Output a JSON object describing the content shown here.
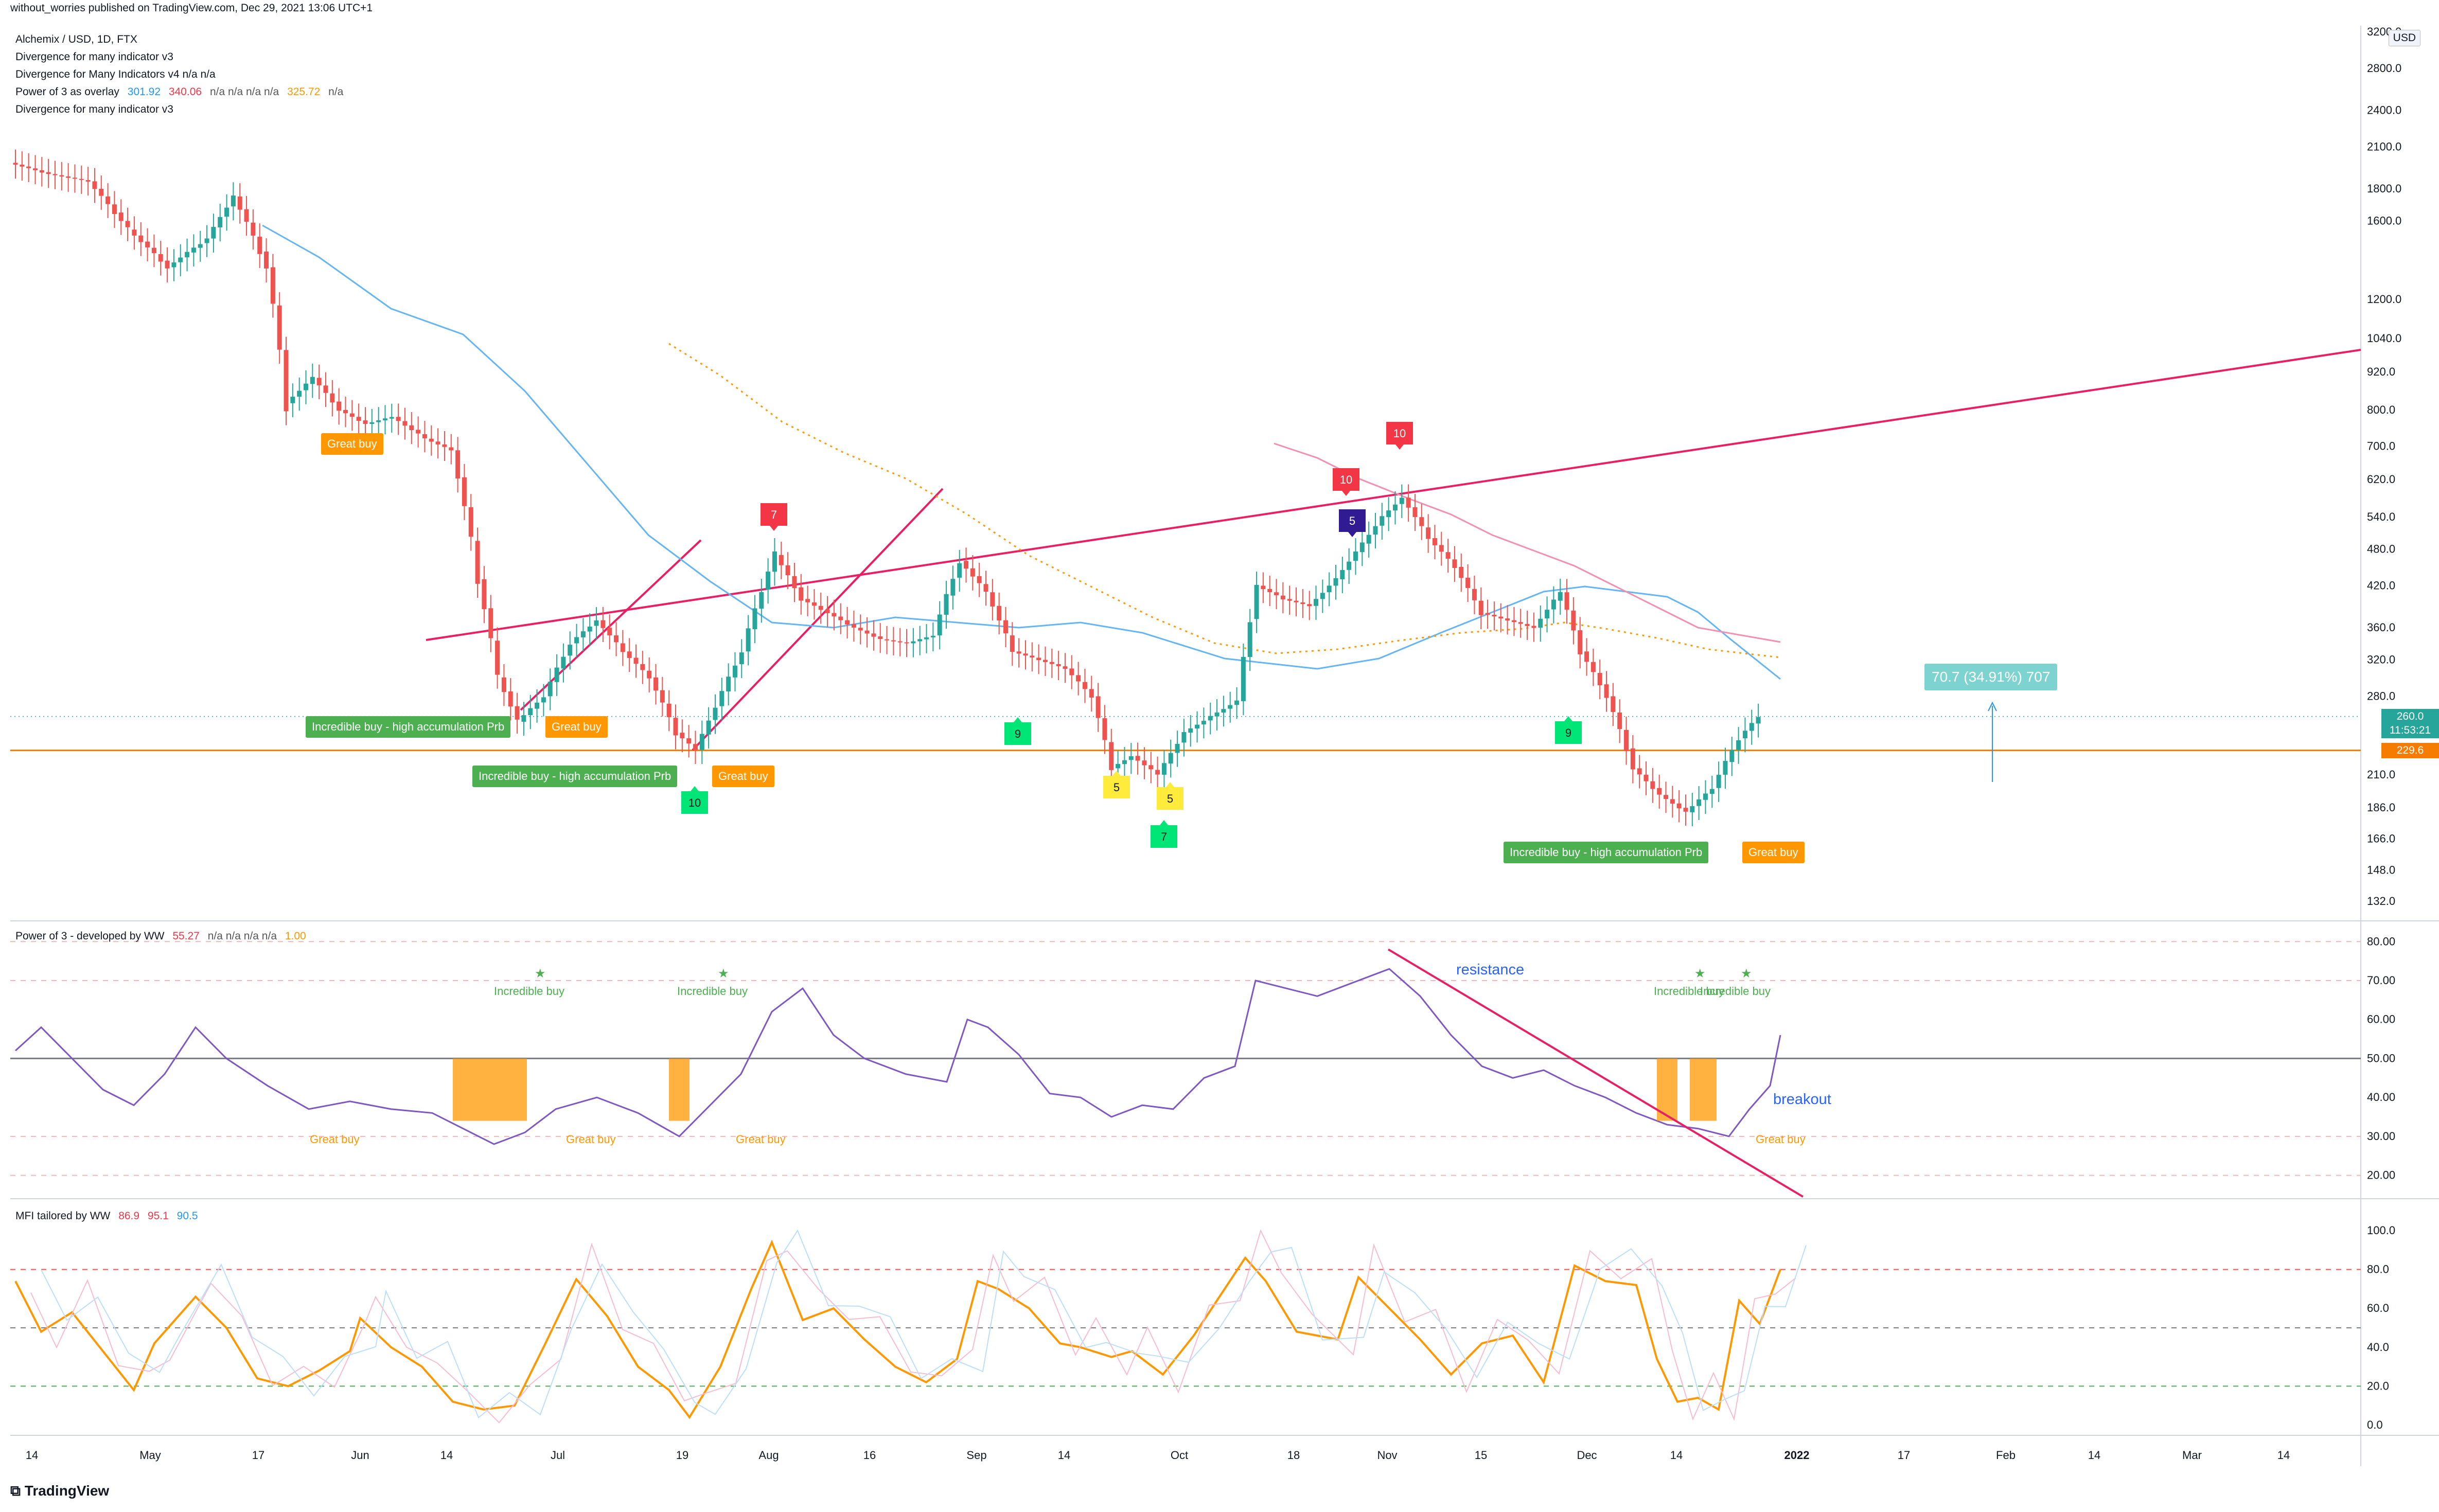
{
  "publisher_line": "without_worries published on TradingView.com, Dec 29, 2021 13:06 UTC+1",
  "currency_badge": "USD",
  "branding": "TradingView",
  "legend": {
    "symbol": "Alchemix / USD, 1D, FTX",
    "lines": [
      "Divergence for many indicator v3",
      "Divergence for Many Indicators v4  n/a  n/a"
    ],
    "power3_overlay": {
      "label": "Power of 3 as overlay",
      "v1": "301.92",
      "v2": "340.06",
      "na": "n/a  n/a  n/a  n/a",
      "v3": "325.72",
      "tail": "n/a"
    },
    "last_line": "Divergence for many indicator v3"
  },
  "price_pane": {
    "y_axis_ticks": [
      "3200.0",
      "2800.0",
      "2400.0",
      "2100.0",
      "1800.0",
      "1600.0",
      "1200.0",
      "1040.0",
      "920.0",
      "800.0",
      "700.0",
      "620.0",
      "540.0",
      "480.0",
      "420.0",
      "360.0",
      "320.0",
      "280.0",
      "210.0",
      "186.0",
      "166.0",
      "148.0",
      "132.0"
    ],
    "last_price": "260.0",
    "countdown": "11:53:21",
    "level_price": "229.6",
    "measure_label": "70.7 (34.91%) 707",
    "colors": {
      "up": "#26a69a",
      "down": "#ef5350",
      "trendline": "#e91e63",
      "support": "#f57c00",
      "sma": "#64b5f6",
      "ema": "#ff9800"
    },
    "signals": [
      {
        "text": "Great buy",
        "color": "orange"
      },
      {
        "text": "Incredible buy - high accumulation Prb",
        "color": "green"
      },
      {
        "text": "Great buy",
        "color": "orange"
      },
      {
        "text": "Incredible buy - high accumulation Prb",
        "color": "green"
      },
      {
        "text": "Great buy",
        "color": "orange"
      },
      {
        "text": "Incredible buy - high accumulation Prb",
        "color": "green"
      },
      {
        "text": "Great buy",
        "color": "orange"
      }
    ],
    "counts": [
      {
        "n": "7",
        "c": "#f23645"
      },
      {
        "n": "10",
        "c": "#f23645"
      },
      {
        "n": "10",
        "c": "#f23645"
      },
      {
        "n": "5",
        "c": "#311b92"
      },
      {
        "n": "9",
        "c": "#00e676"
      },
      {
        "n": "9",
        "c": "#00e676"
      },
      {
        "n": "10",
        "c": "#00e676"
      },
      {
        "n": "5",
        "c": "#ffeb3b"
      },
      {
        "n": "5",
        "c": "#ffeb3b"
      },
      {
        "n": "7",
        "c": "#00e676"
      }
    ]
  },
  "power3_pane": {
    "title": "Power of 3 - developed by WW",
    "v1": "55.27",
    "na": "n/a  n/a  n/a  n/a",
    "v2": "1.00",
    "y_ticks": [
      "80.00",
      "70.00",
      "60.00",
      "50.00",
      "40.00",
      "30.00",
      "20.00"
    ],
    "annotations": {
      "resistance": "resistance",
      "breakout": "breakout",
      "incredible": "Incredible buy",
      "great": "Great buy"
    }
  },
  "mfi_pane": {
    "title": "MFI tailored by WW",
    "v1": "86.9",
    "v2": "95.1",
    "v3": "90.5",
    "y_ticks": [
      "100.0",
      "80.0",
      "60.0",
      "40.0",
      "20.0",
      "0.0"
    ]
  },
  "x_axis": [
    "14",
    "May",
    "17",
    "Jun",
    "14",
    "Jul",
    "19",
    "Aug",
    "16",
    "Sep",
    "14",
    "Oct",
    "18",
    "Nov",
    "15",
    "Dec",
    "14",
    "2022",
    "17",
    "Feb",
    "14",
    "Mar",
    "14"
  ],
  "chart_data": {
    "type": "candlestick",
    "title": "Alchemix / USD, 1D, FTX",
    "y_scale": "log",
    "ylim": [
      132,
      3200
    ],
    "series": [
      {
        "name": "Alchemix / USD",
        "points": [
          [
            "Apr 8",
            1980
          ],
          [
            "Apr 14",
            1900
          ],
          [
            "Apr 20",
            1850
          ],
          [
            "Apr 26",
            1550
          ],
          [
            "May 2",
            1350
          ],
          [
            "May 8",
            1500
          ],
          [
            "May 12",
            1750
          ],
          [
            "May 17",
            1350
          ],
          [
            "May 20",
            820
          ],
          [
            "May 24",
            900
          ],
          [
            "May 28",
            800
          ],
          [
            "Jun 1",
            760
          ],
          [
            "Jun 5",
            780
          ],
          [
            "Jun 10",
            720
          ],
          [
            "Jun 14",
            690
          ],
          [
            "Jun 18",
            430
          ],
          [
            "Jun 21",
            300
          ],
          [
            "Jun 24",
            255
          ],
          [
            "Jun 28",
            280
          ],
          [
            "Jul 2",
            340
          ],
          [
            "Jul 6",
            370
          ],
          [
            "Jul 10",
            330
          ],
          [
            "Jul 14",
            300
          ],
          [
            "Jul 18",
            245
          ],
          [
            "Jul 21",
            230
          ],
          [
            "Jul 24",
            270
          ],
          [
            "Jul 28",
            330
          ],
          [
            "Aug 2",
            470
          ],
          [
            "Aug 6",
            400
          ],
          [
            "Aug 10",
            380
          ],
          [
            "Aug 14",
            360
          ],
          [
            "Aug 18",
            345
          ],
          [
            "Aug 22",
            340
          ],
          [
            "Aug 26",
            350
          ],
          [
            "Aug 30",
            460
          ],
          [
            "Sep 3",
            410
          ],
          [
            "Sep 7",
            330
          ],
          [
            "Sep 11",
            320
          ],
          [
            "Sep 15",
            310
          ],
          [
            "Sep 19",
            280
          ],
          [
            "Sep 22",
            215
          ],
          [
            "Sep 25",
            225
          ],
          [
            "Sep 29",
            210
          ],
          [
            "Oct 3",
            245
          ],
          [
            "Oct 7",
            260
          ],
          [
            "Oct 11",
            275
          ],
          [
            "Oct 14",
            420
          ],
          [
            "Oct 18",
            400
          ],
          [
            "Oct 22",
            390
          ],
          [
            "Oct 26",
            430
          ],
          [
            "Oct 30",
            490
          ],
          [
            "Nov 2",
            540
          ],
          [
            "Nov 5",
            580
          ],
          [
            "Nov 9",
            500
          ],
          [
            "Nov 13",
            450
          ],
          [
            "Nov 17",
            380
          ],
          [
            "Nov 21",
            370
          ],
          [
            "Nov 25",
            360
          ],
          [
            "Nov 29",
            410
          ],
          [
            "Dec 2",
            330
          ],
          [
            "Dec 6",
            280
          ],
          [
            "Dec 10",
            215
          ],
          [
            "Dec 14",
            195
          ],
          [
            "Dec 18",
            183
          ],
          [
            "Dec 22",
            200
          ],
          [
            "Dec 26",
            240
          ],
          [
            "Dec 29",
            260
          ]
        ]
      }
    ]
  }
}
